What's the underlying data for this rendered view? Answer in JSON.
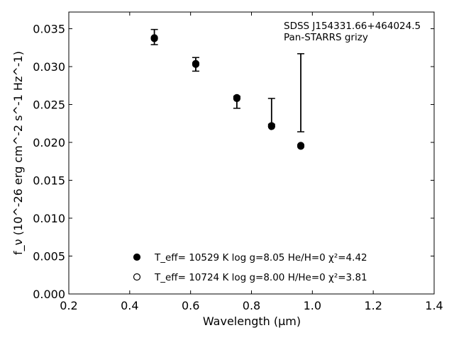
{
  "chart_data": {
    "type": "scatter",
    "annotation": [
      "SDSS J154331.66+464024.5",
      "Pan-STARRS grizy"
    ],
    "xlabel": "Wavelength (μm)",
    "ylabel": "f_ν (10^-26 erg cm^-2 s^-1 Hz^-1)",
    "xlim": [
      0.2,
      1.4
    ],
    "ylim": [
      0.0,
      0.0372
    ],
    "xticks": [
      0.2,
      0.4,
      0.6,
      0.8,
      1.0,
      1.2,
      1.4
    ],
    "xtick_labels": [
      "0.2",
      "0.4",
      "0.6",
      "0.8",
      "1.0",
      "1.2",
      "1.4"
    ],
    "yticks": [
      0.0,
      0.005,
      0.01,
      0.015,
      0.02,
      0.025,
      0.03,
      0.035
    ],
    "ytick_labels": [
      "0.000",
      "0.005",
      "0.010",
      "0.015",
      "0.020",
      "0.025",
      "0.030",
      "0.035"
    ],
    "grid": false,
    "legend_placement": "lower-center",
    "observed": [
      {
        "x": 0.481,
        "low": 0.0329,
        "high": 0.0349
      },
      {
        "x": 0.617,
        "low": 0.0294,
        "high": 0.0312
      },
      {
        "x": 0.752,
        "low": 0.0245,
        "high": 0.0261
      },
      {
        "x": 0.866,
        "low": 0.0224,
        "high": 0.0258
      },
      {
        "x": 0.962,
        "low": 0.0214,
        "high": 0.0317
      }
    ],
    "series": [
      {
        "name": "T_eff= 10529 K  log g=8.05  He/H=0  χ²=4.42",
        "marker": "filled",
        "x": [
          0.481,
          0.617,
          0.752,
          0.866,
          0.962
        ],
        "y": [
          0.0337,
          0.0303,
          0.0258,
          0.0221,
          0.0195
        ]
      },
      {
        "name": "T_eff= 10724 K  log g=8.00  H/He=0  χ²=3.81",
        "marker": "open",
        "x": [
          0.481,
          0.617,
          0.752,
          0.866,
          0.962
        ],
        "y": [
          0.0338,
          0.0304,
          0.0259,
          0.0222,
          0.0196
        ]
      }
    ]
  }
}
